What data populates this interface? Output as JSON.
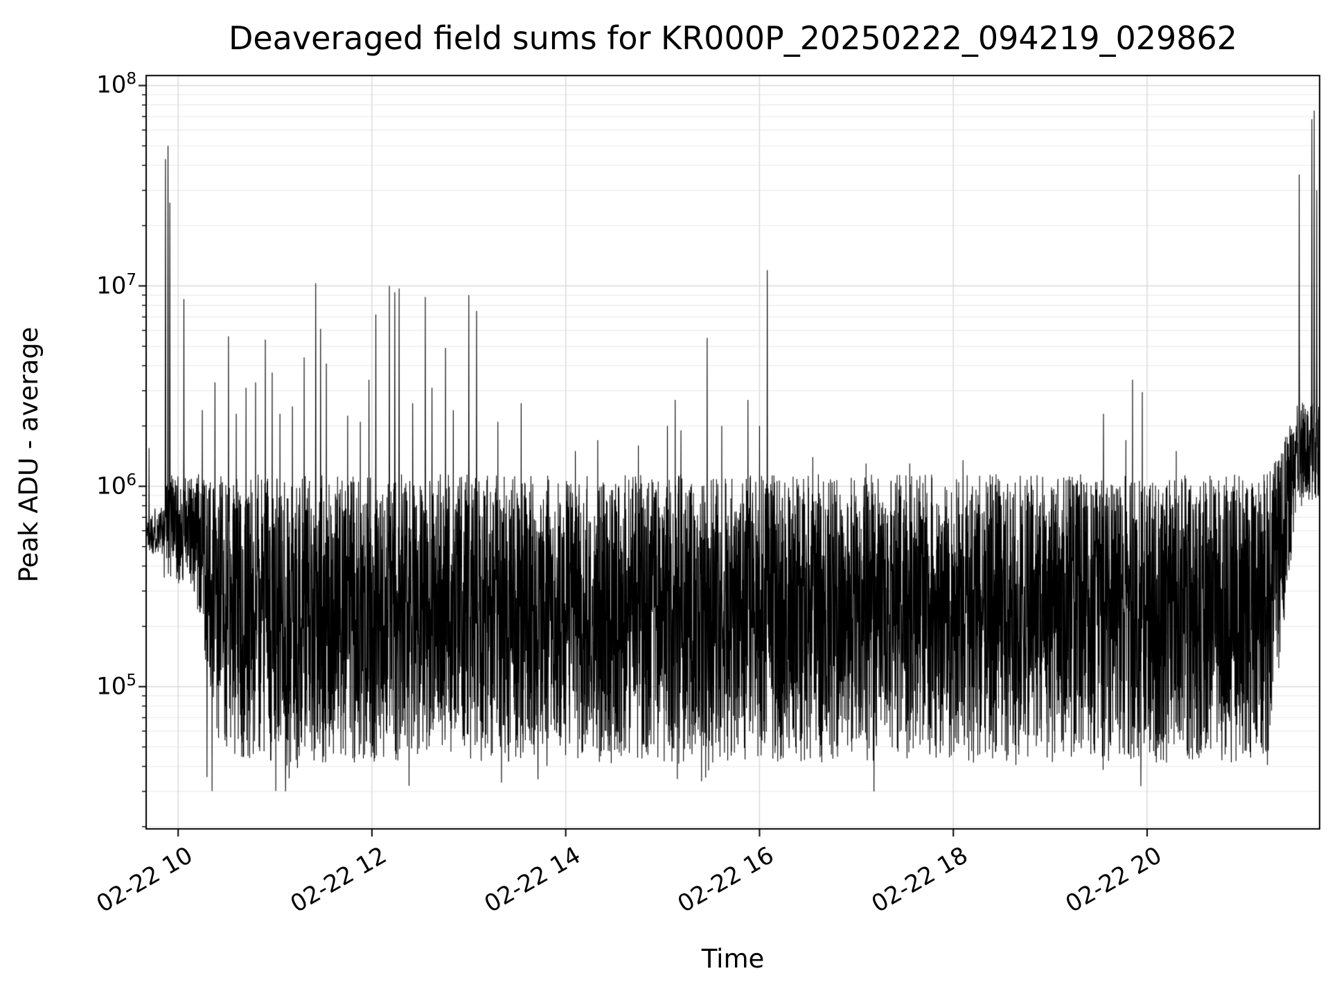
{
  "colors": {
    "background": "#ffffff",
    "line": "#000000",
    "grid_major": "#d9d9d9",
    "grid_minor": "#ebebeb",
    "spine": "#000000",
    "text": "#000000"
  },
  "chart_data": {
    "type": "line",
    "title": "Deaveraged field sums for KR000P_20250222_094219_029862",
    "xlabel": "Time",
    "ylabel": "Peak ADU - average",
    "y_scale": "log",
    "ylog_range": [
      4.29,
      8.05
    ],
    "y_major_tick_exponents": [
      5,
      6,
      7,
      8
    ],
    "x_range_hours": [
      9.67,
      21.78
    ],
    "x_ticks": [
      {
        "t": 10,
        "label": "02-22 10"
      },
      {
        "t": 12,
        "label": "02-22 12"
      },
      {
        "t": 14,
        "label": "02-22 14"
      },
      {
        "t": 16,
        "label": "02-22 16"
      },
      {
        "t": 18,
        "label": "02-22 18"
      },
      {
        "t": 20,
        "label": "02-22 20"
      }
    ],
    "legend": null,
    "grid": "on",
    "series_spec": {
      "seed": 1337,
      "n": 6500,
      "plateau_end": 9.855,
      "plateau_log10": 5.78,
      "plateau_jitter": 0.12,
      "early_min_log10": 5.5,
      "early_end": 10.15,
      "early_fade_end": 10.45,
      "base_min_log10": 4.62,
      "base_max_log10": 6.06,
      "bias_pow": 0.9,
      "dip_prob": 0.004,
      "dip_log10": 4.47,
      "dip_spread": 0.15,
      "ramp_start": 21.25,
      "ramp_full": 21.55,
      "ramp_min_log10": 5.9,
      "ramp_max_log10": 6.42
    },
    "spikes": [
      [
        9.7,
        1550000
      ],
      [
        9.87,
        43000000
      ],
      [
        9.895,
        50000000
      ],
      [
        9.915,
        26000000
      ],
      [
        10.06,
        8600000
      ],
      [
        10.25,
        2400000
      ],
      [
        10.38,
        3300000
      ],
      [
        10.52,
        5600000
      ],
      [
        10.6,
        2300000
      ],
      [
        10.7,
        3100000
      ],
      [
        10.8,
        3300000
      ],
      [
        10.9,
        5400000
      ],
      [
        10.97,
        3700000
      ],
      [
        11.05,
        2300000
      ],
      [
        11.18,
        2500000
      ],
      [
        11.3,
        4400000
      ],
      [
        11.42,
        10300000
      ],
      [
        11.47,
        6100000
      ],
      [
        11.53,
        4100000
      ],
      [
        11.75,
        2250000
      ],
      [
        11.88,
        2100000
      ],
      [
        11.97,
        3400000
      ],
      [
        12.04,
        7200000
      ],
      [
        12.18,
        10000000
      ],
      [
        12.235,
        9300000
      ],
      [
        12.28,
        9700000
      ],
      [
        12.42,
        2600000
      ],
      [
        12.55,
        8800000
      ],
      [
        12.62,
        3100000
      ],
      [
        12.76,
        4900000
      ],
      [
        12.84,
        2400000
      ],
      [
        13.0,
        9000000
      ],
      [
        13.08,
        7500000
      ],
      [
        13.3,
        2100000
      ],
      [
        13.54,
        2600000
      ],
      [
        14.1,
        1500000
      ],
      [
        14.33,
        1700000
      ],
      [
        14.75,
        1600000
      ],
      [
        15.05,
        2000000
      ],
      [
        15.13,
        2700000
      ],
      [
        15.19,
        1900000
      ],
      [
        15.46,
        5500000
      ],
      [
        15.61,
        2000000
      ],
      [
        15.88,
        2700000
      ],
      [
        16.0,
        2000000
      ],
      [
        16.08,
        12000000
      ],
      [
        16.55,
        1400000
      ],
      [
        17.1,
        1300000
      ],
      [
        17.55,
        1300000
      ],
      [
        18.1,
        1350000
      ],
      [
        19.55,
        2300000
      ],
      [
        19.78,
        1700000
      ],
      [
        19.85,
        3400000
      ],
      [
        19.95,
        2950000
      ],
      [
        20.3,
        1500000
      ],
      [
        21.57,
        36000000
      ],
      [
        21.7,
        68000000
      ],
      [
        21.725,
        75000000
      ],
      [
        21.75,
        30000000
      ]
    ]
  }
}
